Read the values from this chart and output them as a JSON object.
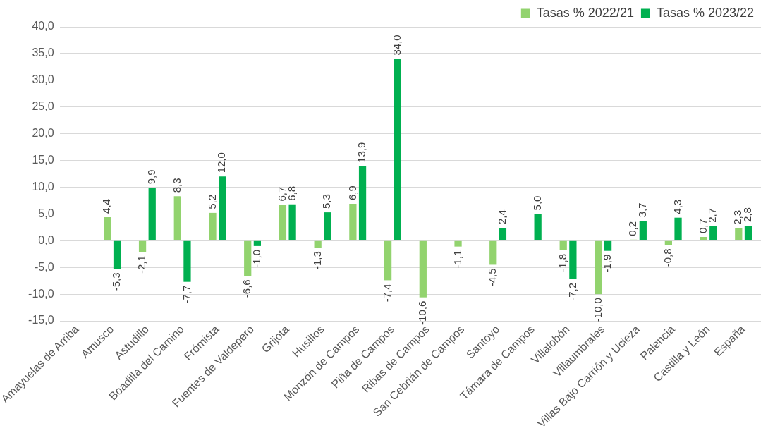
{
  "chart_data": {
    "type": "bar",
    "categories": [
      "Amayuelas de Arriba",
      "Amusco",
      "Astudillo",
      "Boadilla del Camino",
      "Frómista",
      "Fuentes de Valdepero",
      "Grijota",
      "Husillos",
      "Monzón de Campos",
      "Piña de Campos",
      "Ribas de Campos",
      "San Cebrián de Campos",
      "Santoyo",
      "Támara de Campos",
      "Villalobón",
      "Villaumbrales",
      "Villas Bajo Carrión y Ucieza",
      "Palencia",
      "Castilla y León",
      "España"
    ],
    "series": [
      {
        "name": "Tasas % 2022/21",
        "color": "#92d36e",
        "values": [
          null,
          4.4,
          -2.1,
          8.3,
          5.2,
          -6.6,
          6.7,
          -1.3,
          6.9,
          -7.4,
          -10.6,
          -1.1,
          -4.5,
          null,
          -1.8,
          -10.0,
          0.2,
          -0.8,
          0.7,
          2.3
        ],
        "value_labels": [
          null,
          "4,4",
          "-2,1",
          "8,3",
          "5,2",
          "-6,6",
          "6,7",
          "-1,3",
          "6,9",
          "-7,4",
          "-10,6",
          "-1,1",
          "-4,5",
          null,
          "-1,8",
          "-10,0",
          "0,2",
          "-0,8",
          "0,7",
          "2,3"
        ]
      },
      {
        "name": "Tasas % 2023/22",
        "color": "#00b050",
        "values": [
          null,
          -5.3,
          9.9,
          -7.7,
          12.0,
          -1.0,
          6.8,
          5.3,
          13.9,
          34.0,
          null,
          null,
          2.4,
          5.0,
          -7.2,
          -1.9,
          3.7,
          4.3,
          2.7,
          2.8
        ],
        "value_labels": [
          null,
          "-5,3",
          "9,9",
          "-7,7",
          "12,0",
          "-1,0",
          "6,8",
          "5,3",
          "13,9",
          "34,0",
          null,
          null,
          "2,4",
          "5,0",
          "-7,2",
          "-1,9",
          "3,7",
          "4,3",
          "2,7",
          "2,8"
        ]
      }
    ],
    "ylim": [
      -15,
      40
    ],
    "yticks": [
      {
        "value": -15,
        "label": "-15,0"
      },
      {
        "value": -10,
        "label": "-10,0"
      },
      {
        "value": -5,
        "label": "-5,0"
      },
      {
        "value": 0,
        "label": "0,0"
      },
      {
        "value": 5,
        "label": "5,0"
      },
      {
        "value": 10,
        "label": "10,0"
      },
      {
        "value": 15,
        "label": "15,0"
      },
      {
        "value": 20,
        "label": "20,0"
      },
      {
        "value": 25,
        "label": "25,0"
      },
      {
        "value": 30,
        "label": "30,0"
      },
      {
        "value": 35,
        "label": "35,0"
      },
      {
        "value": 40,
        "label": "40,0"
      }
    ],
    "grid": "y",
    "legend": "top right"
  }
}
